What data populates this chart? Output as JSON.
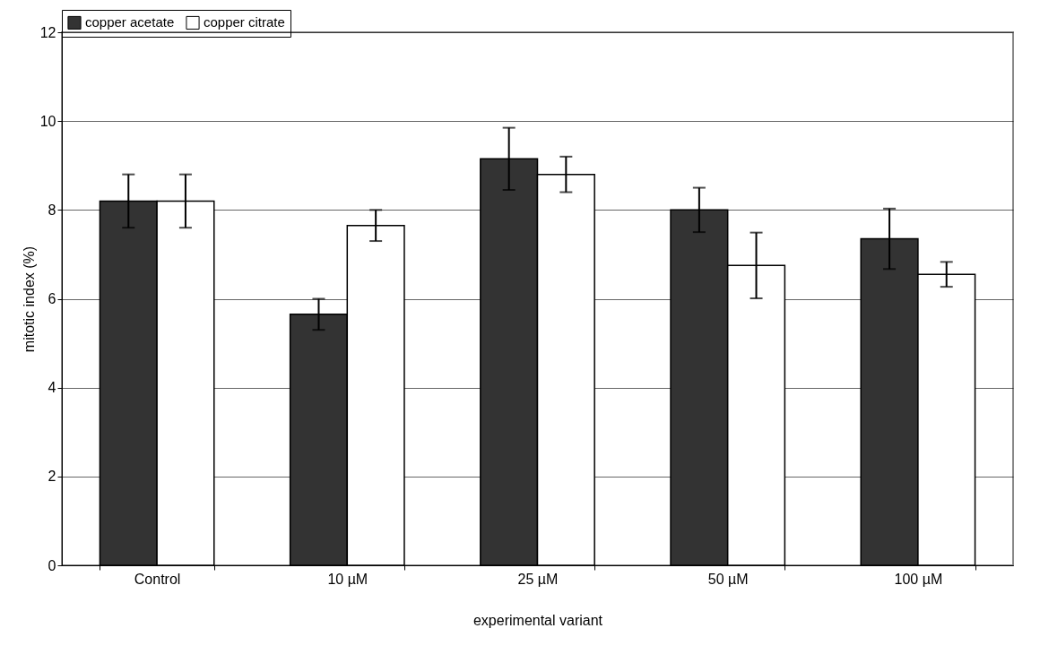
{
  "chart_data": {
    "type": "bar",
    "xlabel": "experimental variant",
    "ylabel": "mitotic index (%)",
    "categories": [
      "Control",
      "10 µM",
      "25 µM",
      "50 µM",
      "100 µM"
    ],
    "series": [
      {
        "name": "copper acetate",
        "color": "#333333",
        "values": [
          8.2,
          5.65,
          9.15,
          8.0,
          7.35
        ],
        "errors": [
          0.6,
          0.35,
          0.7,
          0.5,
          0.68
        ]
      },
      {
        "name": "copper citrate",
        "color": "#ffffff",
        "values": [
          8.2,
          7.65,
          8.8,
          6.75,
          6.55
        ],
        "errors": [
          0.6,
          0.35,
          0.4,
          0.74,
          0.28
        ]
      }
    ],
    "ylim": [
      0,
      12
    ],
    "yticks": [
      0,
      2,
      4,
      6,
      8,
      10,
      12
    ],
    "grid": "y",
    "legend": "top"
  }
}
